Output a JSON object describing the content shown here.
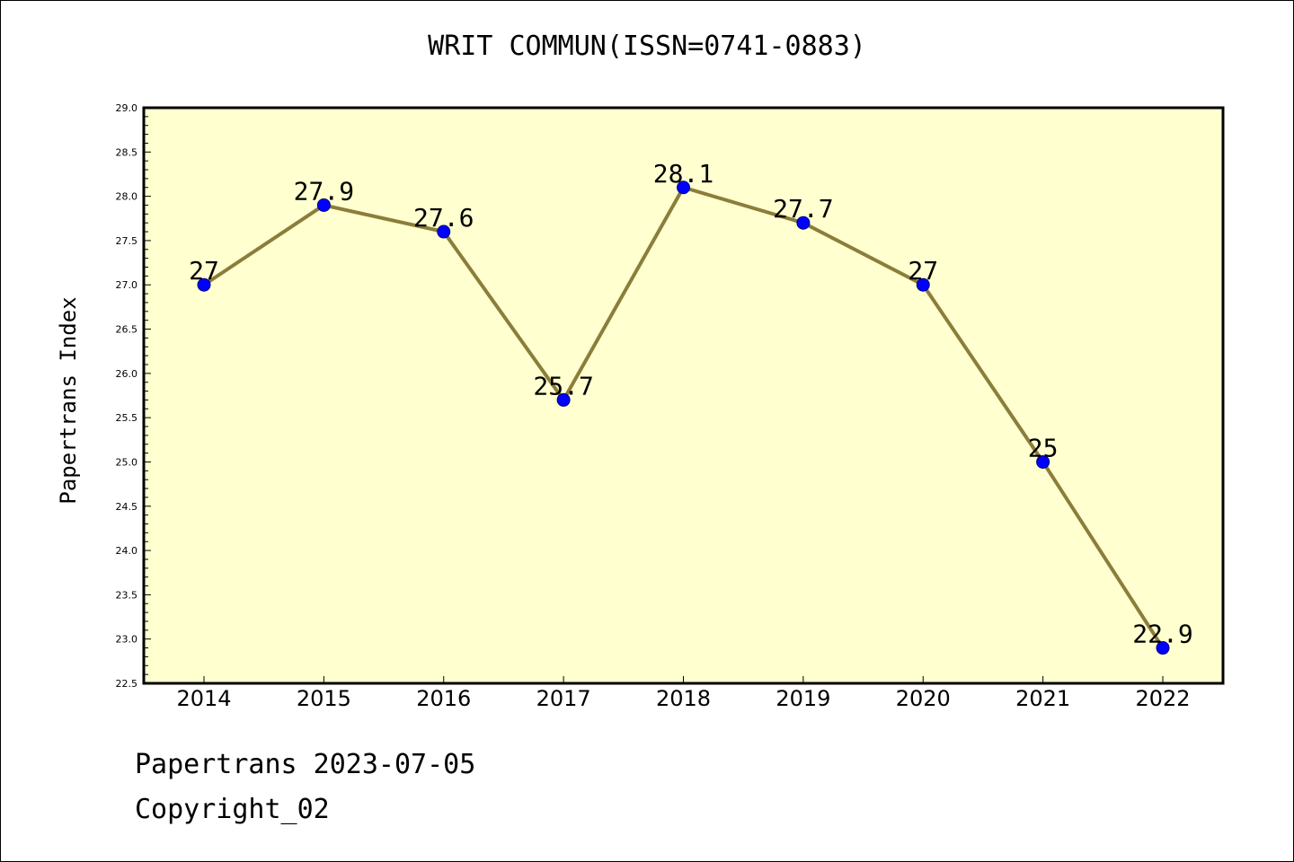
{
  "title": "WRIT COMMUN(ISSN=0741-0883)",
  "footer": {
    "line1": "Papertrans 2023-07-05",
    "line2": "Copyright_02"
  },
  "colors": {
    "plot_background": "#ffffd0",
    "line": "#8b7d3a",
    "marker": "#0000ff",
    "axis": "#000000"
  },
  "chart_data": {
    "type": "line",
    "title": "WRIT COMMUN(ISSN=0741-0883)",
    "xlabel": "",
    "ylabel": "Papertrans Index",
    "categories": [
      "2014",
      "2015",
      "2016",
      "2017",
      "2018",
      "2019",
      "2020",
      "2021",
      "2022"
    ],
    "values": [
      27,
      27.9,
      27.6,
      25.7,
      28.1,
      27.7,
      27,
      25,
      22.9
    ],
    "data_labels": [
      "27",
      "27.9",
      "27.6",
      "25.7",
      "28.1",
      "27.7",
      "27",
      "25",
      "22.9"
    ],
    "ylim": [
      22.5,
      29.0
    ],
    "yticks": [
      "22.5",
      "23.0",
      "23.5",
      "24.0",
      "24.5",
      "25.0",
      "25.5",
      "26.0",
      "26.5",
      "27.0",
      "27.5",
      "28.0",
      "28.5",
      "29.0"
    ],
    "grid": false,
    "legend": "none"
  }
}
